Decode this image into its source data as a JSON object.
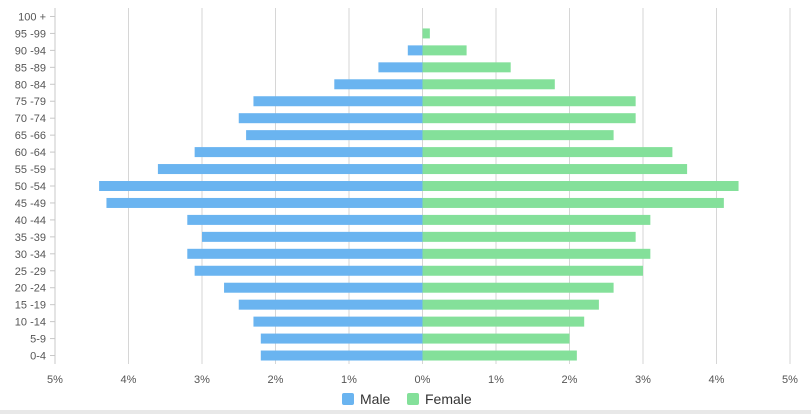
{
  "chart_data": {
    "type": "bar",
    "orientation": "horizontal-population-pyramid",
    "title": "",
    "xlabel": "",
    "ylabel": "",
    "xlim": [
      -5,
      5
    ],
    "x_ticks": [
      "5%",
      "4%",
      "3%",
      "2%",
      "1%",
      "0%",
      "1%",
      "2%",
      "3%",
      "4%",
      "5%"
    ],
    "categories": [
      "0-4",
      "5-9",
      "10 -14",
      "15 -19",
      "20 -24",
      "25 -29",
      "30 -34",
      "35 -39",
      "40 -44",
      "45 -49",
      "50 -54",
      "55 -59",
      "60 -64",
      "65 -66",
      "70 -74",
      "75 -79",
      "80 -84",
      "85 -89",
      "90 -94",
      "95 -99",
      "100 +"
    ],
    "series": [
      {
        "name": "Male",
        "color": "#6ab4f0",
        "values": [
          2.2,
          2.2,
          2.3,
          2.5,
          2.7,
          3.1,
          3.2,
          3.0,
          3.2,
          4.3,
          4.4,
          3.6,
          3.1,
          2.4,
          2.5,
          2.3,
          1.2,
          0.6,
          0.2,
          0.0,
          0.0
        ]
      },
      {
        "name": "Female",
        "color": "#84e09a",
        "values": [
          2.1,
          2.0,
          2.2,
          2.4,
          2.6,
          3.0,
          3.1,
          2.9,
          3.1,
          4.1,
          4.3,
          3.6,
          3.4,
          2.6,
          2.9,
          2.9,
          1.8,
          1.2,
          0.6,
          0.1,
          0.0
        ]
      }
    ],
    "legend": {
      "position": "bottom-center",
      "items": [
        "Male",
        "Female"
      ]
    },
    "grid": true
  }
}
